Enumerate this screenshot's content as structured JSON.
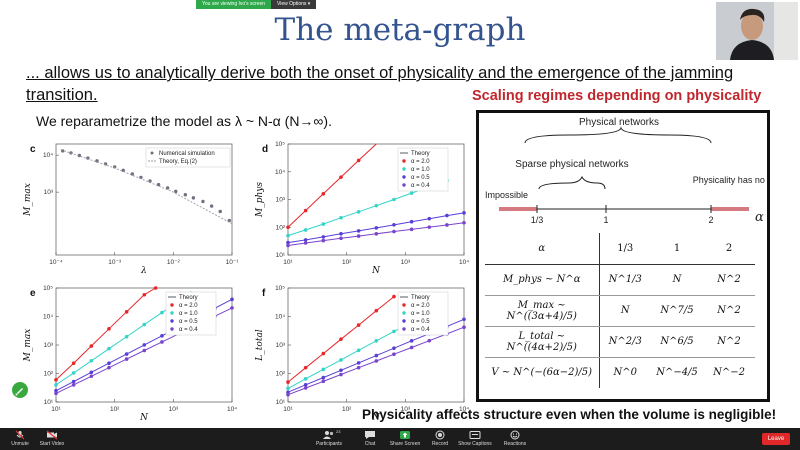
{
  "share": {
    "message": "You are viewing Ivo's screen",
    "options": "View Options ▾"
  },
  "slide": {
    "title": "The meta-graph",
    "subtitle": "... allows us to analytically derive both the onset of physicality and the emergence of the jamming transition.",
    "reparam": "We reparametrize the model as λ ~ N-α  (N→∞).",
    "conclusion": "Physicality affects structure even when the volume is negligible!",
    "regimes_heading": "Scaling regimes depending on physicality"
  },
  "axis": {
    "header": "Physical networks",
    "sparse": "Sparse physical networks",
    "impossible": "Impossible",
    "no_effect": "Physicality has no effect",
    "ticks": [
      "1/3",
      "1",
      "2"
    ],
    "alpha": "α"
  },
  "table": {
    "header": [
      "α",
      "1/3",
      "1",
      "2"
    ],
    "rows": [
      {
        "label": "M_phys ~ N^α",
        "values": [
          "N^1/3",
          "N",
          "N^2"
        ]
      },
      {
        "label": "M_max ~ N^((3α+4)/5)",
        "values": [
          "N",
          "N^7/5",
          "N^2"
        ]
      },
      {
        "label": "L_total ~ N^((4α+2)/5)",
        "values": [
          "N^2/3",
          "N^6/5",
          "N^2"
        ]
      },
      {
        "label": "V ~ N^(−(6α−2)/5)",
        "values": [
          "N^0",
          "N^−4/5",
          "N^−2"
        ]
      }
    ]
  },
  "chart_data": [
    {
      "panel": "c",
      "type": "scatter",
      "xlabel": "λ",
      "ylabel": "M_max",
      "xscale": "log",
      "yscale": "log",
      "xlim": [
        0.0001,
        0.1
      ],
      "ylim": [
        20,
        20000
      ],
      "x_ticks": [
        "10⁻⁴",
        "10⁻³",
        "10⁻²",
        "10⁻¹"
      ],
      "y_ticks": [
        "10⁴",
        "10³"
      ],
      "legend": [
        "Numerical simulation",
        "Theory, Eq.(2)"
      ],
      "series": [
        {
          "name": "Numerical simulation",
          "color": "#6f7080",
          "x": [
            0.00013,
            0.00018,
            0.00025,
            0.00035,
            0.0005,
            0.0007,
            0.001,
            0.0014,
            0.002,
            0.0028,
            0.004,
            0.0056,
            0.008,
            0.011,
            0.016,
            0.022,
            0.032,
            0.045,
            0.063,
            0.09
          ],
          "y": [
            13000,
            11500,
            9800,
            8300,
            7000,
            5800,
            4800,
            3900,
            3100,
            2500,
            2000,
            1600,
            1300,
            1050,
            850,
            700,
            560,
            420,
            300,
            170
          ]
        },
        {
          "name": "Theory, Eq.(2)",
          "color": "#9a9aa6",
          "dashed": true,
          "x": [
            0.00012,
            0.001,
            0.01,
            0.1
          ],
          "y": [
            14000,
            4500,
            1000,
            140
          ]
        }
      ]
    },
    {
      "panel": "d",
      "type": "line",
      "xlabel": "N",
      "ylabel": "M_phys",
      "xscale": "log",
      "yscale": "log",
      "xlim": [
        10,
        10000
      ],
      "ylim": [
        10,
        100000
      ],
      "x_ticks": [
        "10¹",
        "10²",
        "10³",
        "10⁴"
      ],
      "y_ticks": [
        "10⁵",
        "10⁴",
        "10³",
        "10²",
        "10¹"
      ],
      "legend": [
        "Theory",
        "α = 2.0",
        "α = 1.0",
        "α = 0.5",
        "α = 0.4"
      ],
      "series": [
        {
          "name": "α = 2.0",
          "color": "#e8262a",
          "x": [
            10,
            20,
            40,
            80,
            160,
            320
          ],
          "y": [
            100,
            400,
            1600,
            6400,
            25600,
            102400
          ]
        },
        {
          "name": "α = 1.0",
          "color": "#34d4c8",
          "x": [
            10,
            20,
            40,
            80,
            160,
            320,
            640,
            1280,
            2560,
            5120
          ],
          "y": [
            50,
            80,
            130,
            220,
            360,
            600,
            1000,
            1700,
            2900,
            4800
          ]
        },
        {
          "name": "α = 0.5",
          "color": "#5a3fd6",
          "x": [
            10,
            20,
            40,
            80,
            160,
            320,
            640,
            1280,
            2560,
            5120,
            10000
          ],
          "y": [
            28,
            35,
            45,
            58,
            74,
            95,
            122,
            158,
            204,
            264,
            330
          ]
        },
        {
          "name": "α = 0.4",
          "color": "#7a44cc",
          "x": [
            10,
            20,
            40,
            80,
            160,
            320,
            640,
            1280,
            2560,
            5120,
            10000
          ],
          "y": [
            22,
            27,
            33,
            40,
            48,
            58,
            70,
            84,
            101,
            121,
            145
          ]
        }
      ]
    },
    {
      "panel": "e",
      "type": "line",
      "xlabel": "N",
      "ylabel": "M_max",
      "xscale": "log",
      "yscale": "log",
      "xlim": [
        10,
        10000
      ],
      "ylim": [
        10,
        100000
      ],
      "x_ticks": [
        "10¹",
        "10²",
        "10³",
        "10⁴"
      ],
      "y_ticks": [
        "10⁵",
        "10⁴",
        "10³",
        "10²",
        "10¹"
      ],
      "legend": [
        "Theory",
        "α = 2.0",
        "α = 1.0",
        "α = 0.5",
        "α = 0.4"
      ],
      "series": [
        {
          "name": "α = 2.0",
          "color": "#e8262a",
          "x": [
            10,
            20,
            40,
            80,
            160,
            320,
            500
          ],
          "y": [
            60,
            230,
            920,
            3700,
            14600,
            58000,
            100000
          ]
        },
        {
          "name": "α = 1.0",
          "color": "#34d4c8",
          "x": [
            10,
            20,
            40,
            80,
            160,
            320,
            640,
            1280,
            2000
          ],
          "y": [
            40,
            105,
            280,
            740,
            1950,
            5200,
            13700,
            36000,
            66000
          ]
        },
        {
          "name": "α = 0.5",
          "color": "#5a3fd6",
          "x": [
            10,
            20,
            40,
            80,
            160,
            320,
            640,
            1280,
            2560,
            5120,
            10000
          ],
          "y": [
            25,
            52,
            110,
            230,
            480,
            1010,
            2100,
            4400,
            9300,
            19500,
            40000
          ]
        },
        {
          "name": "α = 0.4",
          "color": "#7a44cc",
          "x": [
            10,
            20,
            40,
            80,
            160,
            320,
            640,
            1280,
            2560,
            5120,
            10000
          ],
          "y": [
            20,
            40,
            80,
            160,
            320,
            640,
            1280,
            2560,
            5120,
            10240,
            20000
          ]
        }
      ]
    },
    {
      "panel": "f",
      "type": "line",
      "xlabel": "N",
      "ylabel": "L_total",
      "xscale": "log",
      "yscale": "log",
      "xlim": [
        10,
        10000
      ],
      "ylim": [
        10,
        100000
      ],
      "x_ticks": [
        "10¹",
        "10²",
        "10³",
        "10⁴"
      ],
      "y_ticks": [
        "10⁵",
        "10⁴",
        "10³",
        "10²",
        "10¹"
      ],
      "legend": [
        "Theory",
        "α = 2.0",
        "α = 1.0",
        "α = 0.5",
        "α = 0.4"
      ],
      "series": [
        {
          "name": "α = 2.0",
          "color": "#e8262a",
          "x": [
            10,
            20,
            40,
            80,
            160,
            320,
            640
          ],
          "y": [
            50,
            160,
            500,
            1600,
            5000,
            16000,
            50000
          ]
        },
        {
          "name": "α = 1.0",
          "color": "#34d4c8",
          "x": [
            10,
            20,
            40,
            80,
            160,
            320,
            640,
            1280,
            2560
          ],
          "y": [
            30,
            65,
            140,
            300,
            650,
            1400,
            3000,
            6500,
            14000
          ]
        },
        {
          "name": "α = 0.5",
          "color": "#5a3fd6",
          "x": [
            10,
            20,
            40,
            80,
            160,
            320,
            640,
            1280,
            2560,
            5120,
            10000
          ],
          "y": [
            22,
            40,
            72,
            130,
            235,
            425,
            770,
            1400,
            2500,
            4500,
            8000
          ]
        },
        {
          "name": "α = 0.4",
          "color": "#7a44cc",
          "x": [
            10,
            20,
            40,
            80,
            160,
            320,
            640,
            1280,
            2560,
            5120,
            10000
          ],
          "y": [
            18,
            31,
            53,
            92,
            160,
            275,
            475,
            820,
            1420,
            2450,
            4200
          ]
        }
      ]
    }
  ],
  "toolbar": {
    "unmute": "Unmute",
    "start_video": "Start Video",
    "participants": "Participants",
    "participants_count": "23",
    "chat": "Chat",
    "share_screen": "Share Screen",
    "record": "Record",
    "show_captions": "Show Captions",
    "reactions": "Reactions",
    "leave": "Leave"
  },
  "colors": {
    "title": "#34548f",
    "heading": "#c0272d",
    "share_green": "#2ea84a",
    "leave_red": "#e02828"
  }
}
